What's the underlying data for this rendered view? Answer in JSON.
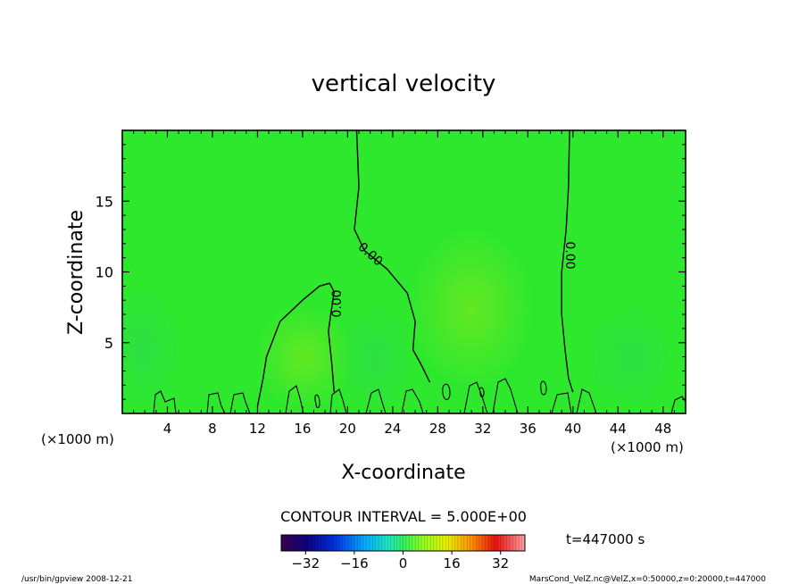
{
  "chart_data": {
    "type": "heatmap",
    "title": "vertical velocity",
    "xlabel": "X-coordinate",
    "ylabel": "Z-coordinate",
    "x_unit_label": "(×1000 m)",
    "x_unit_label_right": "(×1000 m)",
    "xlim": [
      0,
      50
    ],
    "ylim": [
      0,
      20
    ],
    "x_ticks": [
      4,
      8,
      12,
      16,
      20,
      24,
      28,
      32,
      36,
      40,
      44,
      48
    ],
    "y_ticks": [
      5,
      10,
      15
    ],
    "contour_interval_label": "CONTOUR INTERVAL = 5.000E+00",
    "contour_levels_labeled": [
      "0.00",
      "0.00",
      "0.00"
    ],
    "time_label": "t=447000 s",
    "colorbar": {
      "range": [
        -40,
        40
      ],
      "ticks": [
        -32,
        -16,
        0,
        16,
        32
      ],
      "colors": [
        "#2a0040",
        "#0000a0",
        "#0050ff",
        "#00c8ff",
        "#30ff80",
        "#a0ff00",
        "#ffe000",
        "#ff6000",
        "#e00000",
        "#ff9090"
      ]
    },
    "field_color_near_zero": "#2ee82e",
    "contour_zero_lines": [
      {
        "points": [
          [
            20.8,
            20
          ],
          [
            21.0,
            16
          ],
          [
            20.6,
            13
          ],
          [
            21.5,
            11.5
          ],
          [
            23.5,
            10.2
          ],
          [
            25.3,
            8.5
          ],
          [
            26.0,
            6.5
          ],
          [
            25.8,
            4.5
          ],
          [
            26.5,
            3.5
          ],
          [
            27.3,
            2.2
          ]
        ]
      },
      {
        "points": [
          [
            39.7,
            20
          ],
          [
            39.6,
            16
          ],
          [
            39.4,
            13
          ],
          [
            39.0,
            10
          ],
          [
            39.0,
            7
          ],
          [
            39.3,
            4.5
          ],
          [
            39.6,
            2.5
          ],
          [
            40.0,
            1.5
          ]
        ]
      },
      {
        "points": [
          [
            12.0,
            0.5
          ],
          [
            12.5,
            2.5
          ],
          [
            12.8,
            4.0
          ],
          [
            14.0,
            6.5
          ],
          [
            16.0,
            8.0
          ],
          [
            17.5,
            9.0
          ],
          [
            18.4,
            9.2
          ],
          [
            18.8,
            8.6
          ],
          [
            18.5,
            7.0
          ],
          [
            18.3,
            5.8
          ],
          [
            18.6,
            3.5
          ],
          [
            18.8,
            1.5
          ]
        ]
      }
    ],
    "footer_left": "/usr/bin/gpview   2008-12-21",
    "footer_right": "MarsCond_VelZ.nc@VelZ,x=0:50000,z=0:20000,t=447000"
  }
}
